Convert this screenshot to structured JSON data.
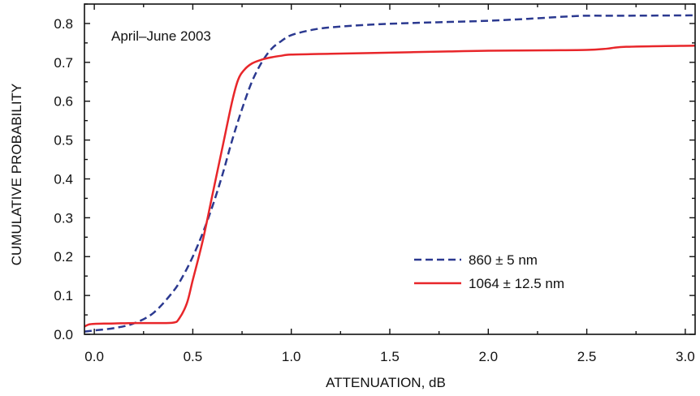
{
  "chart_data": {
    "type": "line",
    "title": "",
    "annotation": "April–June 2003",
    "xlabel": "ATTENUATION, dB",
    "ylabel": "CUMULATIVE PROBABILITY",
    "xlim": [
      -0.05,
      3.05
    ],
    "ylim": [
      0,
      0.85
    ],
    "x_ticks": [
      0.0,
      0.5,
      1.0,
      1.5,
      2.0,
      2.5,
      3.0
    ],
    "x_tick_labels": [
      "0.0",
      "0.5",
      "1.0",
      "1.5",
      "2.0",
      "2.5",
      "3.0"
    ],
    "y_ticks": [
      0.0,
      0.1,
      0.2,
      0.3,
      0.4,
      0.5,
      0.6,
      0.7,
      0.8
    ],
    "y_tick_labels": [
      "0.0",
      "0.1",
      "0.2",
      "0.3",
      "0.4",
      "0.5",
      "0.6",
      "0.7",
      "0.8"
    ],
    "grid": false,
    "legend_position": "lower-right",
    "series": [
      {
        "name": "860 ± 5 nm",
        "color": "#2b3990",
        "style": "dashed",
        "x": [
          -0.05,
          0.0,
          0.1,
          0.2,
          0.3,
          0.4,
          0.45,
          0.5,
          0.55,
          0.6,
          0.65,
          0.7,
          0.75,
          0.8,
          0.85,
          0.9,
          0.95,
          1.0,
          1.1,
          1.2,
          1.4,
          1.6,
          1.8,
          2.0,
          2.2,
          2.4,
          2.5,
          2.7,
          3.05
        ],
        "y": [
          0.007,
          0.01,
          0.016,
          0.028,
          0.055,
          0.11,
          0.15,
          0.2,
          0.26,
          0.33,
          0.41,
          0.5,
          0.58,
          0.65,
          0.7,
          0.735,
          0.755,
          0.77,
          0.783,
          0.79,
          0.797,
          0.801,
          0.804,
          0.807,
          0.812,
          0.818,
          0.82,
          0.82,
          0.821
        ]
      },
      {
        "name": "1064 ± 12.5 nm",
        "color": "#e8262a",
        "style": "solid",
        "x": [
          -0.05,
          -0.03,
          0.0,
          0.1,
          0.2,
          0.3,
          0.4,
          0.43,
          0.47,
          0.5,
          0.55,
          0.6,
          0.65,
          0.7,
          0.73,
          0.76,
          0.8,
          0.85,
          0.9,
          0.95,
          1.0,
          1.2,
          1.5,
          1.8,
          2.0,
          2.3,
          2.5,
          2.6,
          2.7,
          3.05
        ],
        "y": [
          0.02,
          0.025,
          0.027,
          0.028,
          0.029,
          0.029,
          0.03,
          0.04,
          0.08,
          0.14,
          0.24,
          0.36,
          0.48,
          0.6,
          0.655,
          0.68,
          0.697,
          0.707,
          0.713,
          0.717,
          0.72,
          0.722,
          0.725,
          0.728,
          0.73,
          0.731,
          0.732,
          0.735,
          0.74,
          0.743
        ]
      }
    ]
  }
}
